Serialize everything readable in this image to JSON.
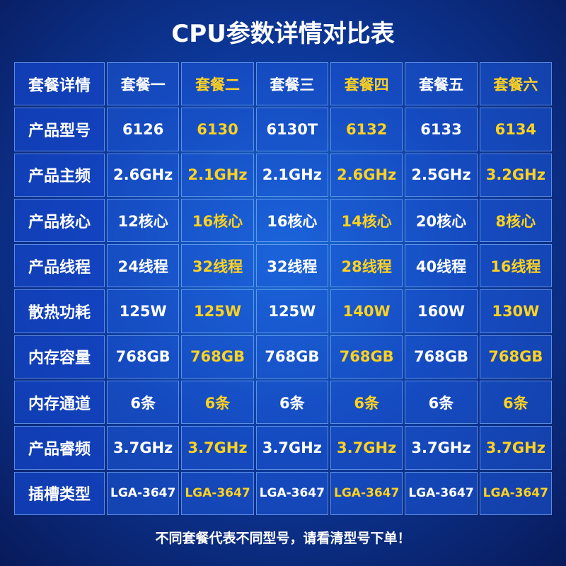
{
  "header": {
    "title": "CPU参数详情对比表"
  },
  "table": {
    "rows": [
      [
        "套餐详情",
        "套餐一",
        "套餐二",
        "套餐三",
        "套餐四",
        "套餐五",
        "套餐六"
      ],
      [
        "产品型号",
        "6126",
        "6130",
        "6130T",
        "6132",
        "6133",
        "6134"
      ],
      [
        "产品主频",
        "2.6GHz",
        "2.1GHz",
        "2.1GHz",
        "2.6GHz",
        "2.5GHz",
        "3.2GHz"
      ],
      [
        "产品核心",
        "12核心",
        "16核心",
        "16核心",
        "14核心",
        "20核心",
        "8核心"
      ],
      [
        "产品线程",
        "24线程",
        "32线程",
        "32线程",
        "28线程",
        "40线程",
        "16线程"
      ],
      [
        "散热功耗",
        "125W",
        "125W",
        "125W",
        "140W",
        "160W",
        "130W"
      ],
      [
        "内存容量",
        "768GB",
        "768GB",
        "768GB",
        "768GB",
        "768GB",
        "768GB"
      ],
      [
        "内存通道",
        "6条",
        "6条",
        "6条",
        "6条",
        "6条",
        "6条"
      ],
      [
        "产品睿频",
        "3.7GHz",
        "3.7GHz",
        "3.7GHz",
        "3.7GHz",
        "3.7GHz",
        "3.7GHz"
      ],
      [
        "插槽类型",
        "LGA-3647",
        "LGA-3647",
        "LGA-3647",
        "LGA-3647",
        "LGA-3647",
        "LGA-3647"
      ]
    ]
  },
  "footer": {
    "note": "不同套餐代表不同型号，请看清型号下单！"
  }
}
